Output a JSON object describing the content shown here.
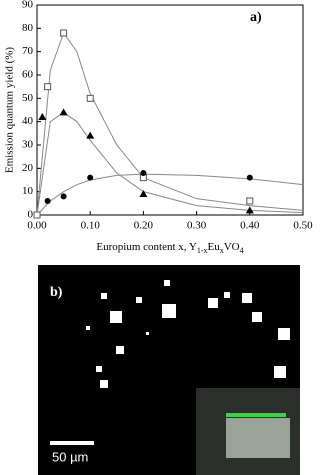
{
  "chart_data": {
    "type": "scatter",
    "panel_label": "a)",
    "y_label": "Emission quantum yield (%)",
    "x_label_parts": [
      {
        "text": "Europium content x, Y"
      },
      {
        "text": "1-x",
        "sub": true
      },
      {
        "text": "Eu"
      },
      {
        "text": "x",
        "sub": true
      },
      {
        "text": "VO"
      },
      {
        "text": "4",
        "sub": true
      }
    ],
    "xlim": [
      0,
      0.5
    ],
    "ylim": [
      0,
      90
    ],
    "xticks": [
      {
        "value": 0,
        "label": "0.00"
      },
      {
        "value": 0.1,
        "label": "0.10"
      },
      {
        "value": 0.2,
        "label": "0.20"
      },
      {
        "value": 0.3,
        "label": "0.30"
      },
      {
        "value": 0.4,
        "label": "0.40"
      },
      {
        "value": 0.5,
        "label": "0.50"
      }
    ],
    "yticks": [
      0,
      10,
      20,
      30,
      40,
      50,
      60,
      70,
      80,
      90
    ],
    "series": [
      {
        "marker": "square",
        "color": "#555555",
        "x": [
          0,
          0.02,
          0.05,
          0.1,
          0.2,
          0.4
        ],
        "values": [
          0,
          55,
          78,
          50,
          16,
          6
        ]
      },
      {
        "marker": "triangle",
        "color": "#000000",
        "x": [
          0.01,
          0.05,
          0.1,
          0.2,
          0.4
        ],
        "values": [
          42,
          44,
          34,
          9,
          2
        ]
      },
      {
        "marker": "circle",
        "color": "#000000",
        "x": [
          0.02,
          0.05,
          0.1,
          0.2,
          0.4
        ],
        "values": [
          6,
          8,
          16,
          18,
          16
        ]
      }
    ],
    "fits": [
      {
        "color": "#888888",
        "x": [
          0,
          0.025,
          0.05,
          0.075,
          0.1,
          0.15,
          0.2,
          0.3,
          0.4,
          0.5
        ],
        "values": [
          0,
          62,
          78,
          70,
          52,
          30,
          16,
          7,
          4,
          2
        ]
      },
      {
        "color": "#888888",
        "x": [
          0,
          0.025,
          0.05,
          0.075,
          0.1,
          0.15,
          0.2,
          0.3,
          0.4,
          0.5
        ],
        "values": [
          0,
          40,
          44,
          40,
          32,
          18,
          10,
          4,
          2,
          1
        ]
      },
      {
        "color": "#888888",
        "x": [
          0,
          0.025,
          0.05,
          0.075,
          0.1,
          0.15,
          0.2,
          0.3,
          0.4,
          0.5
        ],
        "values": [
          0,
          6,
          10,
          13,
          15,
          17,
          17.5,
          17,
          15.5,
          13
        ]
      }
    ]
  },
  "image_panel": {
    "panel_label": "b)",
    "scale_bar": "50 µm"
  }
}
